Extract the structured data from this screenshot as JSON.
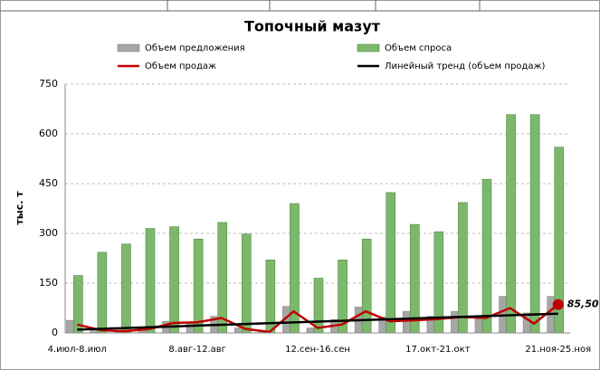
{
  "chart_data": {
    "type": "bar_line",
    "title": "Топочный мазут",
    "ylabel": "тыс. т",
    "categories": [
      "4.июл-8.июл",
      null,
      null,
      null,
      null,
      "8.авг-12.авг",
      null,
      null,
      null,
      null,
      "12.сен-16.сен",
      null,
      null,
      null,
      null,
      "17.окт-21.окт",
      null,
      null,
      null,
      null,
      "21.ноя-25.ноя"
    ],
    "series": [
      {
        "name": "Объем предложения",
        "kind": "bar",
        "color": "#a6a6a6",
        "values": [
          38,
          10,
          5,
          15,
          35,
          30,
          50,
          15,
          5,
          80,
          15,
          40,
          78,
          48,
          65,
          50,
          65,
          50,
          110,
          60,
          110
        ]
      },
      {
        "name": "Объем спроса",
        "kind": "bar",
        "color": "#7cb86c",
        "values": [
          173,
          243,
          268,
          315,
          320,
          283,
          333,
          298,
          220,
          390,
          165,
          220,
          283,
          423,
          327,
          305,
          393,
          463,
          658,
          658,
          560
        ]
      },
      {
        "name": "Объем продаж",
        "kind": "line",
        "color": "#c00000",
        "values": [
          25,
          8,
          5,
          12,
          30,
          32,
          45,
          12,
          3,
          65,
          15,
          25,
          65,
          35,
          38,
          42,
          48,
          45,
          75,
          28,
          85.5
        ]
      },
      {
        "name": "Линейный тренд (объем продаж)",
        "kind": "line",
        "color": "#000000",
        "values": [
          10,
          12.4,
          14.8,
          17.2,
          19.6,
          22,
          24.4,
          26.8,
          29.2,
          31.6,
          34,
          36.4,
          38.8,
          41.2,
          43.6,
          46,
          48.4,
          50.8,
          53.2,
          55.6,
          58
        ]
      }
    ],
    "annotation": "85,50",
    "ylim": [
      0,
      750
    ],
    "yticks": [
      0,
      150,
      300,
      450,
      600,
      750
    ],
    "grid": true
  }
}
